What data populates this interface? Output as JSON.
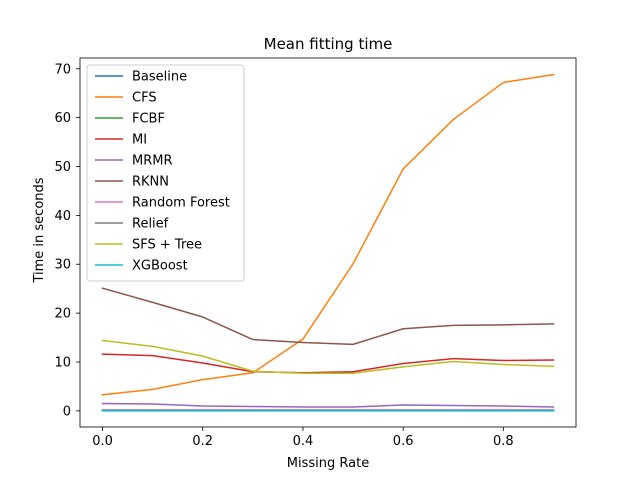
{
  "chart_data": {
    "type": "line",
    "title": "Mean fitting time",
    "xlabel": "Missing Rate",
    "ylabel": "Time in seconds",
    "xlim": [
      -0.045,
      0.945
    ],
    "ylim": [
      -3.3,
      72.2
    ],
    "xticks": [
      0.0,
      0.2,
      0.4,
      0.6,
      0.8
    ],
    "xtick_labels": [
      "0.0",
      "0.2",
      "0.4",
      "0.6",
      "0.8"
    ],
    "yticks": [
      0,
      10,
      20,
      30,
      40,
      50,
      60,
      70
    ],
    "ytick_labels": [
      "0",
      "10",
      "20",
      "30",
      "40",
      "50",
      "60",
      "70"
    ],
    "grid": false,
    "legend_position": "upper-left",
    "x": [
      0.0,
      0.1,
      0.2,
      0.3,
      0.4,
      0.5,
      0.6,
      0.7,
      0.8,
      0.9
    ],
    "series": [
      {
        "name": "Baseline",
        "color": "#1f77b4",
        "values": [
          0.1,
          0.1,
          0.1,
          0.1,
          0.1,
          0.1,
          0.1,
          0.1,
          0.1,
          0.1
        ]
      },
      {
        "name": "CFS",
        "color": "#ff7f0e",
        "values": [
          3.3,
          4.4,
          6.4,
          7.8,
          14.7,
          30.1,
          49.5,
          59.6,
          67.2,
          68.8
        ]
      },
      {
        "name": "FCBF",
        "color": "#2ca02c",
        "values": [
          0.1,
          0.1,
          0.1,
          0.1,
          0.1,
          0.1,
          0.1,
          0.1,
          0.1,
          0.1
        ]
      },
      {
        "name": "MI",
        "color": "#d62728",
        "values": [
          11.6,
          11.3,
          9.8,
          8.0,
          7.8,
          8.0,
          9.7,
          10.7,
          10.3,
          10.4
        ]
      },
      {
        "name": "MRMR",
        "color": "#9467bd",
        "values": [
          1.5,
          1.4,
          1.0,
          0.9,
          0.8,
          0.8,
          1.2,
          1.1,
          1.0,
          0.8
        ]
      },
      {
        "name": "RKNN",
        "color": "#8c564b",
        "values": [
          25.1,
          22.2,
          19.2,
          14.6,
          14.0,
          13.6,
          16.8,
          17.5,
          17.6,
          17.8
        ]
      },
      {
        "name": "Random Forest",
        "color": "#e377c2",
        "values": [
          0.2,
          0.2,
          0.2,
          0.2,
          0.2,
          0.2,
          0.2,
          0.2,
          0.2,
          0.2
        ]
      },
      {
        "name": "Relief",
        "color": "#7f7f7f",
        "values": [
          0.1,
          0.1,
          0.1,
          0.1,
          0.1,
          0.1,
          0.1,
          0.1,
          0.1,
          0.1
        ]
      },
      {
        "name": "SFS + Tree",
        "color": "#bcbd22",
        "values": [
          14.4,
          13.2,
          11.2,
          8.1,
          7.7,
          7.7,
          9.0,
          10.1,
          9.5,
          9.1
        ]
      },
      {
        "name": "XGBoost",
        "color": "#17becf",
        "values": [
          0.0,
          0.0,
          0.0,
          0.0,
          0.0,
          0.0,
          0.0,
          0.0,
          0.0,
          0.0
        ]
      }
    ]
  }
}
